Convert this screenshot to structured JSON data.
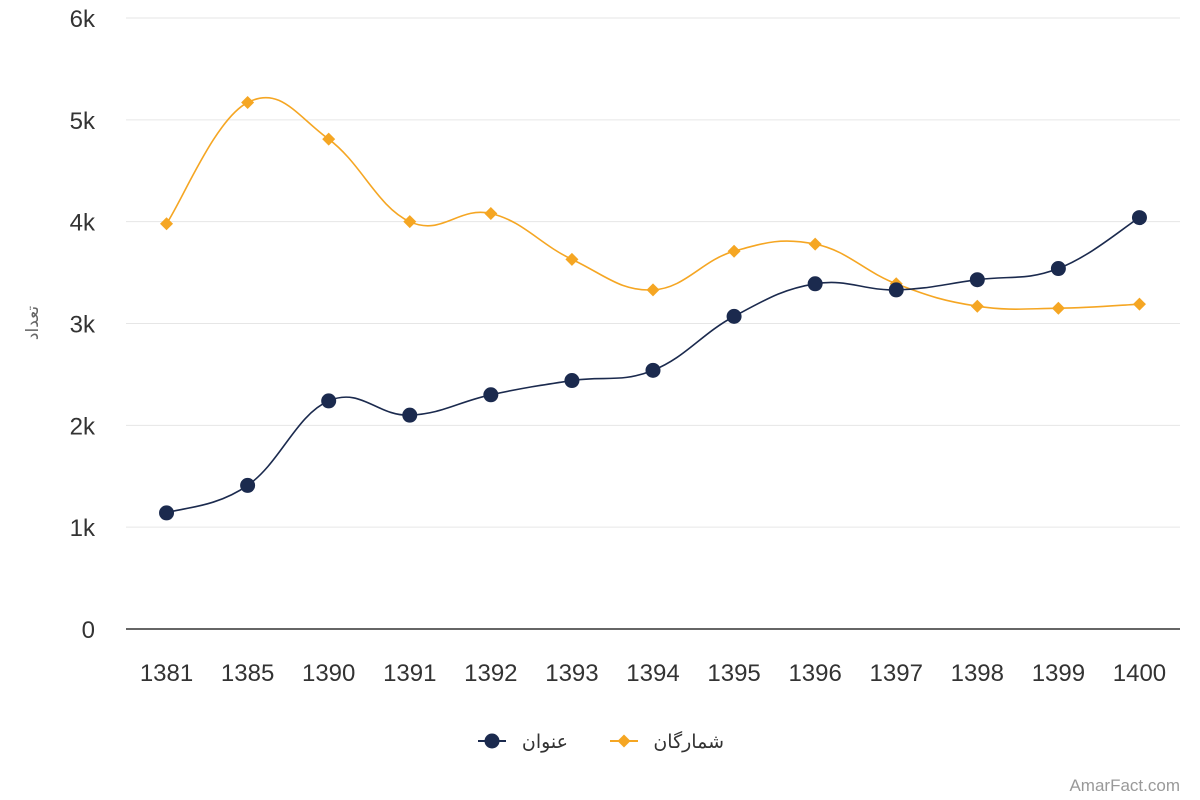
{
  "chart_data": {
    "type": "line",
    "title": "",
    "xlabel": "",
    "ylabel": "تعداد",
    "categories": [
      "1381",
      "1385",
      "1390",
      "1391",
      "1392",
      "1393",
      "1394",
      "1395",
      "1396",
      "1397",
      "1398",
      "1399",
      "1400"
    ],
    "ylim": [
      0,
      6000
    ],
    "yticks": [
      0,
      1000,
      2000,
      3000,
      4000,
      5000,
      6000
    ],
    "ytick_labels": [
      "0",
      "1k",
      "2k",
      "3k",
      "4k",
      "5k",
      "6k"
    ],
    "grid": true,
    "legend_position": "bottom-center",
    "series": [
      {
        "name": "عنوان",
        "color": "#1b2a4e",
        "marker": "circle",
        "values": [
          1140,
          1410,
          2240,
          2100,
          2300,
          2440,
          2540,
          3070,
          3390,
          3330,
          3430,
          3540,
          4040
        ]
      },
      {
        "name": "شمارگان",
        "color": "#f5a623",
        "marker": "diamond",
        "values": [
          3980,
          5170,
          4810,
          4000,
          4080,
          3630,
          3330,
          3710,
          3780,
          3390,
          3170,
          3150,
          3190
        ]
      }
    ]
  },
  "credit": "AmarFact.com"
}
